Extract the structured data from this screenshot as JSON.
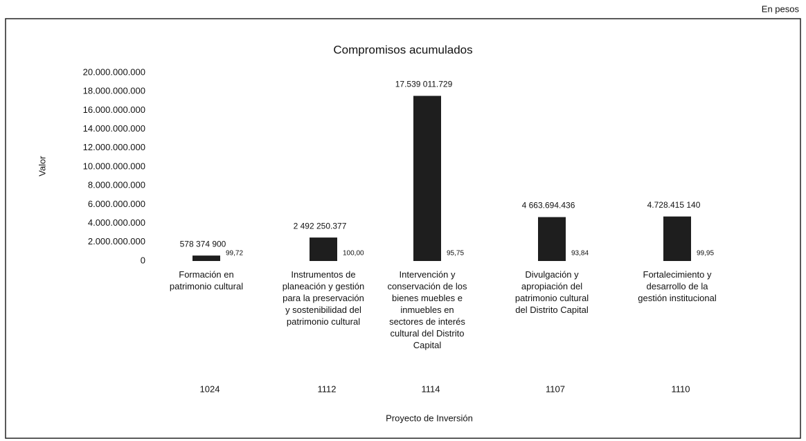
{
  "chart_data": {
    "type": "bar",
    "title": "Compromisos acumulados",
    "note": "En pesos",
    "y_label": "Valor",
    "x_label": "Proyecto de Inversión",
    "categories": [
      [
        "Formación en",
        "patrimonio cultural"
      ],
      [
        "Instrumentos de",
        "planeación y gestión",
        "para la preservación",
        "y sostenibilidad del",
        "patrimonio cultural"
      ],
      [
        "Intervención y",
        "conservación de los",
        "bienes muebles e",
        "inmuebles en",
        "sectores de interés",
        "cultural del Distrito",
        "Capital"
      ],
      [
        "Divulgación y",
        "apropiación del",
        "patrimonio cultural",
        "del Distrito Capital"
      ],
      [
        "Fortalecimiento y",
        "desarrollo de la",
        "gestión institucional"
      ]
    ],
    "codes": [
      1024,
      1112,
      1114,
      1107,
      1110
    ],
    "values": [
      578374900,
      2492250377,
      17539011729,
      4663694436,
      4728415140
    ],
    "value_labels": [
      "578 374 900",
      "2 492 250.377",
      "17.539 011.729",
      "4 663.694.436",
      "4.728.415 140"
    ],
    "percent_values": [
      99.72,
      100,
      95.75,
      93.84,
      99.95
    ],
    "percent_labels": [
      "99,72",
      "100,00",
      "95,75",
      "93,84",
      "99,95"
    ],
    "color": "#1e1e1e",
    "ylim": [
      0,
      20000000000
    ],
    "yticks": [
      0,
      {
        "value": 2000000000,
        "label": "2.000.000.000"
      },
      {
        "value": 4000000000,
        "label": "4.000.000.000"
      },
      {
        "value": 6000000000,
        "label": "6.000.000.000"
      },
      {
        "value": 8000000000,
        "label": "8.000.000.000"
      },
      {
        "value": 10000000000,
        "label": "10.000.000.000"
      },
      {
        "value": 12000000000,
        "label": "12.000.000.000"
      },
      {
        "value": 14000000000,
        "label": "14.000.000.000"
      },
      {
        "value": 16000000000,
        "label": "16.000.000.000"
      },
      {
        "value": 18000000000,
        "label": "18.000.000.000"
      },
      {
        "value": 20000000000,
        "label": "20.000.000.000"
      }
    ],
    "grid": false
  }
}
